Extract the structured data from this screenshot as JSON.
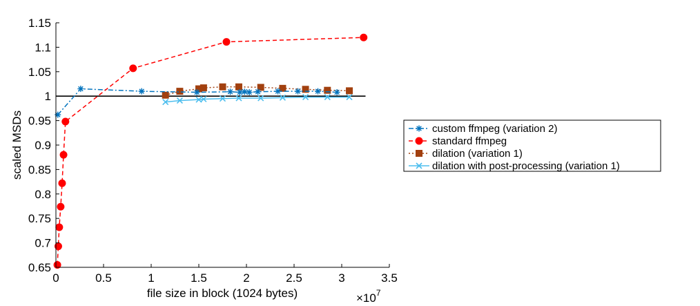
{
  "chart_data": {
    "type": "line",
    "xlabel": "file size in block (1024 bytes)",
    "ylabel": "scaled MSDs",
    "x_multiplier_label": "×10",
    "x_multiplier_exponent": "7",
    "xlim": [
      0,
      35000000
    ],
    "ylim": [
      0.65,
      1.15
    ],
    "x_ticks": [
      0,
      5000000,
      10000000,
      15000000,
      20000000,
      25000000,
      30000000,
      35000000
    ],
    "x_tick_labels": [
      "0",
      "0.5",
      "1",
      "1.5",
      "2",
      "2.5",
      "3",
      "3.5"
    ],
    "y_ticks": [
      0.65,
      0.7,
      0.75,
      0.8,
      0.85,
      0.9,
      0.95,
      1.0,
      1.05,
      1.1,
      1.15
    ],
    "y_tick_labels": [
      "0.65",
      "0.7",
      "0.75",
      "0.8",
      "0.85",
      "0.9",
      "0.95",
      "1",
      "1.05",
      "1.1",
      "1.15"
    ],
    "reference_line": {
      "y": 1.0,
      "x_range": [
        0,
        32500000
      ],
      "color": "#000000"
    },
    "legend_position": "right",
    "series": [
      {
        "name": "custom ffmpeg (variation 2)",
        "color": "#0072BD",
        "line_style": "dashdot",
        "marker": "asterisk",
        "x": [
          200000,
          2600000,
          9000000,
          14800000,
          18300000,
          19300000,
          19800000,
          20300000,
          21200000,
          23300000,
          25400000,
          27500000,
          29500000
        ],
        "y": [
          0.962,
          1.015,
          1.01,
          1.008,
          1.009,
          1.008,
          1.009,
          1.008,
          1.009,
          1.01,
          1.01,
          1.01,
          1.008
        ]
      },
      {
        "name": "standard ffmpeg",
        "color": "#FF0000",
        "line_style": "dashed",
        "marker": "circle",
        "x": [
          150000,
          250000,
          350000,
          500000,
          650000,
          800000,
          1000000,
          8100000,
          17900000,
          32300000
        ],
        "y": [
          0.655,
          0.693,
          0.732,
          0.774,
          0.822,
          0.88,
          0.948,
          1.057,
          1.111,
          1.12
        ]
      },
      {
        "name": "dilation (variation 1)",
        "color": "#A2400F",
        "line_style": "dotted",
        "marker": "square",
        "x": [
          11500000,
          13000000,
          15000000,
          15500000,
          17500000,
          19200000,
          21500000,
          23800000,
          26200000,
          28500000,
          30800000
        ],
        "y": [
          1.002,
          1.01,
          1.015,
          1.017,
          1.019,
          1.019,
          1.018,
          1.016,
          1.014,
          1.012,
          1.011
        ]
      },
      {
        "name": "dilation with post-processing (variation 1)",
        "color": "#4DBEEE",
        "line_style": "solid",
        "marker": "x",
        "x": [
          11500000,
          13000000,
          15000000,
          15500000,
          17500000,
          19200000,
          21500000,
          23800000,
          26200000,
          28500000,
          30800000
        ],
        "y": [
          0.988,
          0.991,
          0.993,
          0.994,
          0.995,
          0.996,
          0.996,
          0.997,
          0.998,
          0.998,
          0.998
        ]
      }
    ]
  }
}
